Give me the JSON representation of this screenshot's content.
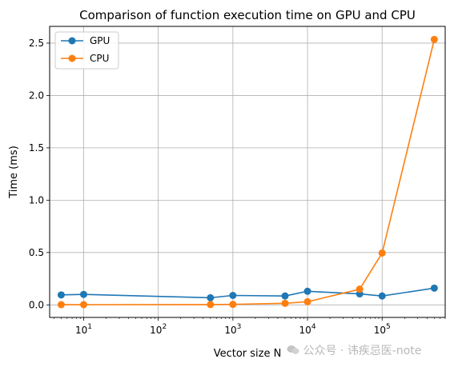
{
  "chart_data": {
    "type": "line",
    "title": "Comparison of function execution time on GPU and CPU",
    "xlabel": "Vector size N",
    "ylabel": "Time (ms)",
    "xscale": "log",
    "xlim": [
      3.5,
      700000
    ],
    "ylim": [
      -0.12,
      2.66
    ],
    "grid": true,
    "legend_position": "top-left",
    "x": [
      5,
      10,
      500,
      1000,
      5000,
      10000,
      50000,
      100000,
      500000
    ],
    "series": [
      {
        "name": "GPU",
        "color": "#1f77b4",
        "values": [
          0.095,
          0.1,
          0.068,
          0.09,
          0.085,
          0.13,
          0.105,
          0.085,
          0.16
        ]
      },
      {
        "name": "CPU",
        "color": "#ff7f0e",
        "values": [
          0.002,
          0.002,
          0.003,
          0.005,
          0.015,
          0.03,
          0.15,
          0.495,
          2.535
        ]
      }
    ],
    "x_ticks": [
      {
        "value": 10,
        "base": "10",
        "exp": "1"
      },
      {
        "value": 100,
        "base": "10",
        "exp": "2"
      },
      {
        "value": 1000,
        "base": "10",
        "exp": "3"
      },
      {
        "value": 10000,
        "base": "10",
        "exp": "4"
      },
      {
        "value": 100000,
        "base": "10",
        "exp": "5"
      }
    ],
    "y_ticks": [
      {
        "value": 0.0,
        "label": "0.0"
      },
      {
        "value": 0.5,
        "label": "0.5"
      },
      {
        "value": 1.0,
        "label": "1.0"
      },
      {
        "value": 1.5,
        "label": "1.5"
      },
      {
        "value": 2.0,
        "label": "2.0"
      },
      {
        "value": 2.5,
        "label": "2.5"
      }
    ]
  },
  "watermark": {
    "icon": "wechat-icon",
    "text": "公众号 · 讳疾忌医-note"
  }
}
